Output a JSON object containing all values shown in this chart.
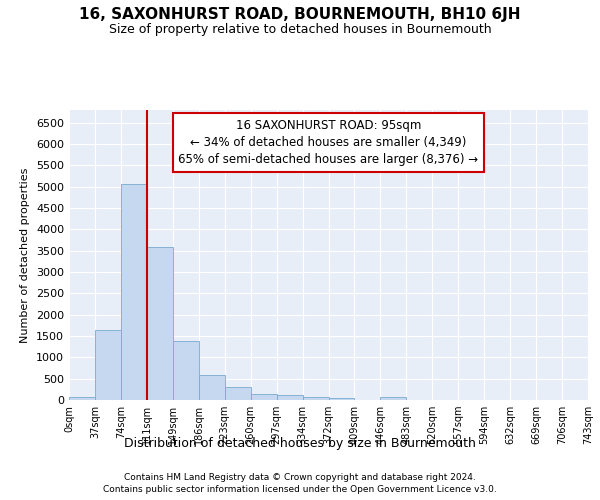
{
  "title": "16, SAXONHURST ROAD, BOURNEMOUTH, BH10 6JH",
  "subtitle": "Size of property relative to detached houses in Bournemouth",
  "xlabel": "Distribution of detached houses by size in Bournemouth",
  "ylabel": "Number of detached properties",
  "bar_color": "#c5d8f0",
  "bar_edge_color": "#7aaad0",
  "background_color": "#e8eef8",
  "grid_color": "#ffffff",
  "vline_color": "#cc0000",
  "vline_x": 2.5,
  "annotation_line1": "16 SAXONHURST ROAD: 95sqm",
  "annotation_line2": "← 34% of detached houses are smaller (4,349)",
  "annotation_line3": "65% of semi-detached houses are larger (8,376) →",
  "footer1": "Contains HM Land Registry data © Crown copyright and database right 2024.",
  "footer2": "Contains public sector information licensed under the Open Government Licence v3.0.",
  "bin_labels": [
    "0sqm",
    "37sqm",
    "74sqm",
    "111sqm",
    "149sqm",
    "186sqm",
    "223sqm",
    "260sqm",
    "297sqm",
    "334sqm",
    "372sqm",
    "409sqm",
    "446sqm",
    "483sqm",
    "520sqm",
    "557sqm",
    "594sqm",
    "632sqm",
    "669sqm",
    "706sqm",
    "743sqm"
  ],
  "values": [
    75,
    1640,
    5060,
    3580,
    1390,
    580,
    300,
    150,
    115,
    75,
    55,
    0,
    65,
    0,
    0,
    0,
    0,
    0,
    0,
    0
  ],
  "ylim": [
    0,
    6800
  ],
  "yticks": [
    0,
    500,
    1000,
    1500,
    2000,
    2500,
    3000,
    3500,
    4000,
    4500,
    5000,
    5500,
    6000,
    6500
  ],
  "title_fontsize": 11,
  "subtitle_fontsize": 9,
  "ylabel_fontsize": 8,
  "xlabel_fontsize": 9,
  "ytick_fontsize": 8,
  "xtick_fontsize": 7,
  "footer_fontsize": 6.5,
  "annot_fontsize": 8.5
}
